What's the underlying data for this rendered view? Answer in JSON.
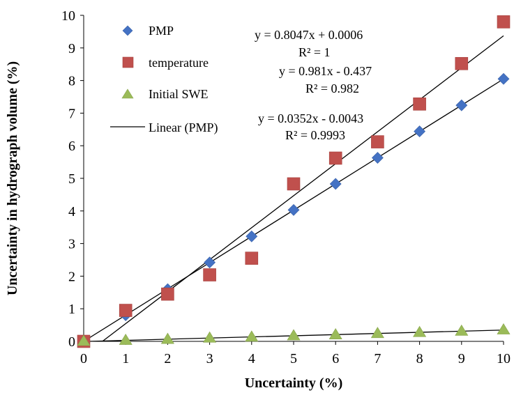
{
  "chart_data": {
    "type": "scatter",
    "xlabel": "Uncertainty (%)",
    "ylabel": "Uncertainty in hydrograph volume (%)",
    "xlim": [
      0,
      10
    ],
    "ylim": [
      0,
      10
    ],
    "x_ticks": [
      0,
      1,
      2,
      3,
      4,
      5,
      6,
      7,
      8,
      9,
      10
    ],
    "y_ticks": [
      0,
      1,
      2,
      3,
      4,
      5,
      6,
      7,
      8,
      9,
      10
    ],
    "grid": false,
    "legend_position": "top-left",
    "x": [
      0,
      1,
      2,
      3,
      4,
      5,
      6,
      7,
      8,
      9,
      10
    ],
    "series": [
      {
        "name": "PMP",
        "marker": "diamond",
        "color": "#4472C4",
        "values": [
          0,
          0.8,
          1.6,
          2.42,
          3.22,
          4.03,
          4.83,
          5.63,
          6.44,
          7.24,
          8.05
        ]
      },
      {
        "name": "temperature",
        "marker": "square",
        "color": "#C0504D",
        "values": [
          0,
          0.95,
          1.45,
          2.04,
          2.55,
          4.83,
          5.62,
          6.12,
          7.28,
          8.52,
          9.8
        ]
      },
      {
        "name": "Initial SWE",
        "marker": "triangle",
        "color": "#9BBB59",
        "values": [
          0,
          0.03,
          0.06,
          0.1,
          0.13,
          0.17,
          0.2,
          0.24,
          0.27,
          0.31,
          0.35
        ]
      }
    ],
    "legend_extra": "Linear (PMP)",
    "trendlines": [
      {
        "slope": 0.8047,
        "intercept": 0.0006,
        "equation": "y = 0.8047x + 0.0006",
        "r2": "R² = 1"
      },
      {
        "slope": 0.981,
        "intercept": -0.437,
        "equation": "y = 0.981x - 0.437",
        "r2": "R² = 0.982"
      },
      {
        "slope": 0.0352,
        "intercept": -0.0043,
        "equation": "y = 0.0352x - 0.0043",
        "r2": "R² = 0.9993"
      }
    ]
  }
}
